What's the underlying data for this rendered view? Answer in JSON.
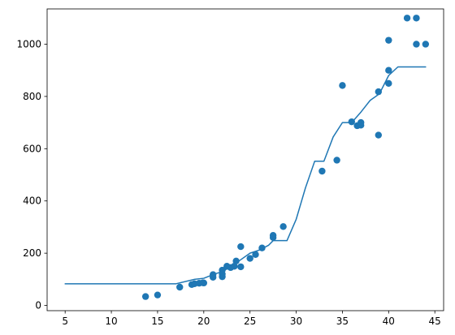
{
  "chart_data": {
    "type": "scatter",
    "title": "",
    "xlabel": "",
    "ylabel": "",
    "xlim": [
      3.05,
      45.95
    ],
    "ylim": [
      -20,
      1135
    ],
    "grid": false,
    "legend": false,
    "x_ticks": [
      5,
      10,
      15,
      20,
      25,
      30,
      35,
      40,
      45
    ],
    "y_ticks": [
      0,
      200,
      400,
      600,
      800,
      1000
    ],
    "x_tick_labels": [
      "5",
      "10",
      "15",
      "20",
      "25",
      "30",
      "35",
      "40",
      "45"
    ],
    "y_tick_labels": [
      "0",
      "200",
      "400",
      "600",
      "800",
      "1000"
    ],
    "colors": {
      "series": "#1f77b4",
      "axes": "#000000",
      "background": "#ffffff"
    },
    "series": [
      {
        "type": "scatter",
        "points": [
          [
            13.7,
            34
          ],
          [
            15.0,
            40
          ],
          [
            17.4,
            70
          ],
          [
            18.7,
            80
          ],
          [
            19.0,
            83
          ],
          [
            19.5,
            85
          ],
          [
            19.9,
            87
          ],
          [
            20.0,
            86
          ],
          [
            21.0,
            108
          ],
          [
            21.0,
            118
          ],
          [
            22.0,
            110
          ],
          [
            22.0,
            120
          ],
          [
            22.0,
            135
          ],
          [
            22.5,
            150
          ],
          [
            22.9,
            145
          ],
          [
            23.3,
            150
          ],
          [
            23.5,
            170
          ],
          [
            24.0,
            148
          ],
          [
            24.0,
            225
          ],
          [
            25.0,
            180
          ],
          [
            25.6,
            195
          ],
          [
            26.3,
            220
          ],
          [
            27.5,
            260
          ],
          [
            27.5,
            268
          ],
          [
            28.6,
            302
          ],
          [
            32.8,
            514
          ],
          [
            34.4,
            556
          ],
          [
            35.0,
            842
          ],
          [
            36.0,
            703
          ],
          [
            36.6,
            688
          ],
          [
            37.0,
            690
          ],
          [
            37.0,
            700
          ],
          [
            38.9,
            652
          ],
          [
            38.9,
            818
          ],
          [
            40.0,
            850
          ],
          [
            40.0,
            900
          ],
          [
            40.0,
            1015
          ],
          [
            42.0,
            1100
          ],
          [
            43.0,
            1000
          ],
          [
            43.0,
            1100
          ],
          [
            44.0,
            1000
          ]
        ]
      },
      {
        "type": "line",
        "points": [
          [
            5.0,
            83
          ],
          [
            17.0,
            83
          ],
          [
            19.0,
            100
          ],
          [
            20.0,
            104
          ],
          [
            21.0,
            118
          ],
          [
            22.0,
            130
          ],
          [
            23.0,
            150
          ],
          [
            24.0,
            175
          ],
          [
            25.0,
            200
          ],
          [
            26.0,
            212
          ],
          [
            27.0,
            230
          ],
          [
            27.5,
            248
          ],
          [
            28.5,
            248
          ],
          [
            29.0,
            248
          ],
          [
            30.0,
            330
          ],
          [
            31.0,
            450
          ],
          [
            32.0,
            552
          ],
          [
            33.0,
            552
          ],
          [
            34.0,
            645
          ],
          [
            35.0,
            700
          ],
          [
            36.0,
            700
          ],
          [
            37.0,
            740
          ],
          [
            38.0,
            785
          ],
          [
            39.0,
            810
          ],
          [
            40.0,
            880
          ],
          [
            41.0,
            913
          ],
          [
            42.0,
            913
          ],
          [
            44.0,
            913
          ]
        ]
      }
    ]
  }
}
